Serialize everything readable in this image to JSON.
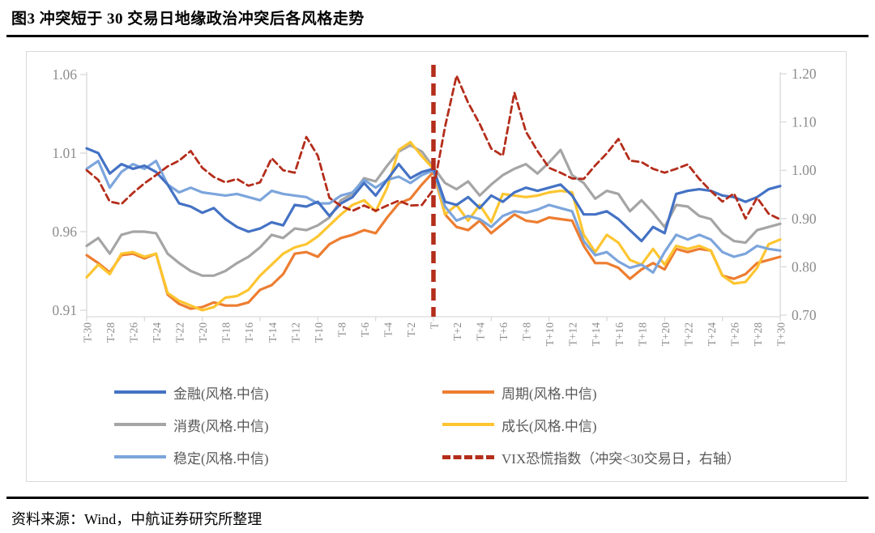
{
  "title": "图3  冲突短于 30 交易日地缘政治冲突后各风格走势",
  "source_note": "资料来源：Wind，中航证券研究所整理",
  "colors": {
    "finance_blue": "#4472C4",
    "cyclical_orange": "#ED7D31",
    "consumer_gray": "#A5A5A5",
    "growth_gold": "#FDC530",
    "stable_lightblue": "#7CA5DC",
    "vix_red": "#B42D1B",
    "event_line_red": "#B42D1B",
    "axis_line": "#D9D9D9",
    "axis_text": "#8C8C8C",
    "legend_text": "#595959"
  },
  "chart_data": {
    "type": "line",
    "title": "图3  冲突短于 30 交易日地缘政治冲突后各风格走势",
    "x_labels_all": [
      "T-30",
      "T-29",
      "T-28",
      "T-27",
      "T-26",
      "T-25",
      "T-24",
      "T-23",
      "T-22",
      "T-21",
      "T-20",
      "T-19",
      "T-18",
      "T-17",
      "T-16",
      "T-15",
      "T-14",
      "T-13",
      "T-12",
      "T-11",
      "T-10",
      "T-9",
      "T-8",
      "T-7",
      "T-6",
      "T-5",
      "T-4",
      "T-3",
      "T-2",
      "T-1",
      "T",
      "T+1",
      "T+2",
      "T+3",
      "T+4",
      "T+5",
      "T+6",
      "T+7",
      "T+8",
      "T+9",
      "T+10",
      "T+11",
      "T+12",
      "T+13",
      "T+14",
      "T+15",
      "T+16",
      "T+17",
      "T+18",
      "T+19",
      "T+20",
      "T+21",
      "T+22",
      "T+23",
      "T+24",
      "T+25",
      "T+26",
      "T+27",
      "T+28",
      "T+29",
      "T+30"
    ],
    "x_label_interval": 2,
    "x_tick_interval": 5,
    "event_line_label": "T",
    "event_line_index": 30,
    "left_axis": {
      "min": 0.91,
      "max": 1.06,
      "ticks": [
        1.06,
        1.01,
        0.96,
        0.91
      ]
    },
    "right_axis": {
      "min": 0.7,
      "max": 1.2,
      "ticks": [
        1.2,
        1.1,
        1.0,
        0.9,
        0.8,
        0.7
      ]
    },
    "grid": false,
    "legend_position": "bottom-two-columns",
    "series": [
      {
        "name": "金融(风格.中信)",
        "axis": "left",
        "color": "#4472C4",
        "style": "solid",
        "values": [
          1.013,
          1.01,
          0.997,
          1.003,
          1.0,
          1.002,
          0.998,
          0.99,
          0.978,
          0.976,
          0.972,
          0.975,
          0.968,
          0.963,
          0.96,
          0.962,
          0.966,
          0.964,
          0.977,
          0.976,
          0.979,
          0.97,
          0.978,
          0.982,
          0.991,
          0.983,
          0.993,
          1.003,
          0.994,
          0.998,
          1.0,
          0.979,
          0.977,
          0.982,
          0.975,
          0.983,
          0.979,
          0.985,
          0.988,
          0.986,
          0.988,
          0.99,
          0.983,
          0.971,
          0.971,
          0.973,
          0.968,
          0.961,
          0.954,
          0.963,
          0.959,
          0.984,
          0.986,
          0.987,
          0.986,
          0.983,
          0.982,
          0.979,
          0.982,
          0.987,
          0.989
        ]
      },
      {
        "name": "周期(风格.中信)",
        "axis": "left",
        "color": "#ED7D31",
        "style": "solid",
        "values": [
          0.945,
          0.94,
          0.934,
          0.945,
          0.946,
          0.943,
          0.946,
          0.92,
          0.914,
          0.911,
          0.912,
          0.915,
          0.913,
          0.913,
          0.915,
          0.923,
          0.926,
          0.933,
          0.946,
          0.947,
          0.944,
          0.952,
          0.956,
          0.958,
          0.961,
          0.959,
          0.969,
          0.978,
          0.981,
          0.99,
          0.998,
          0.971,
          0.963,
          0.961,
          0.967,
          0.959,
          0.965,
          0.971,
          0.967,
          0.966,
          0.969,
          0.968,
          0.967,
          0.951,
          0.94,
          0.94,
          0.937,
          0.93,
          0.936,
          0.94,
          0.936,
          0.949,
          0.947,
          0.949,
          0.948,
          0.932,
          0.93,
          0.933,
          0.94,
          0.942,
          0.944
        ]
      },
      {
        "name": "消费(风格.中信)",
        "axis": "left",
        "color": "#A5A5A5",
        "style": "solid",
        "values": [
          0.951,
          0.956,
          0.946,
          0.958,
          0.96,
          0.96,
          0.959,
          0.946,
          0.94,
          0.935,
          0.932,
          0.932,
          0.935,
          0.94,
          0.944,
          0.95,
          0.958,
          0.956,
          0.962,
          0.961,
          0.964,
          0.969,
          0.98,
          0.984,
          0.994,
          0.992,
          1.002,
          1.011,
          1.015,
          1.011,
          1.001,
          0.991,
          0.987,
          0.992,
          0.983,
          0.99,
          0.996,
          1.0,
          1.003,
          0.997,
          1.004,
          1.012,
          0.996,
          0.991,
          0.981,
          0.986,
          0.984,
          0.973,
          0.98,
          0.972,
          0.963,
          0.977,
          0.976,
          0.97,
          0.968,
          0.959,
          0.954,
          0.953,
          0.961,
          0.963,
          0.965
        ]
      },
      {
        "name": "成长(风格.中信)",
        "axis": "left",
        "color": "#FDC530",
        "style": "solid",
        "values": [
          0.931,
          0.939,
          0.933,
          0.946,
          0.947,
          0.944,
          0.946,
          0.921,
          0.916,
          0.913,
          0.91,
          0.912,
          0.918,
          0.919,
          0.923,
          0.932,
          0.939,
          0.946,
          0.95,
          0.952,
          0.957,
          0.964,
          0.971,
          0.977,
          0.98,
          0.973,
          0.988,
          1.012,
          1.017,
          1.008,
          1.0,
          0.971,
          0.977,
          0.967,
          0.977,
          0.966,
          0.984,
          0.983,
          0.982,
          0.983,
          0.985,
          0.986,
          0.985,
          0.958,
          0.947,
          0.958,
          0.953,
          0.942,
          0.939,
          0.949,
          0.939,
          0.951,
          0.949,
          0.951,
          0.948,
          0.932,
          0.927,
          0.928,
          0.937,
          0.952,
          0.955
        ]
      },
      {
        "name": "稳定(风格.中信)",
        "axis": "left",
        "color": "#7CA5DC",
        "style": "solid",
        "values": [
          1.0,
          1.005,
          0.988,
          0.998,
          1.003,
          1.0,
          1.005,
          0.99,
          0.985,
          0.988,
          0.985,
          0.984,
          0.983,
          0.984,
          0.982,
          0.98,
          0.986,
          0.984,
          0.983,
          0.982,
          0.978,
          0.978,
          0.983,
          0.985,
          0.993,
          0.988,
          0.993,
          0.995,
          0.991,
          0.996,
          0.999,
          0.976,
          0.967,
          0.97,
          0.968,
          0.963,
          0.97,
          0.973,
          0.972,
          0.974,
          0.977,
          0.975,
          0.973,
          0.954,
          0.945,
          0.947,
          0.941,
          0.937,
          0.939,
          0.934,
          0.947,
          0.958,
          0.955,
          0.958,
          0.955,
          0.947,
          0.944,
          0.946,
          0.951,
          0.949,
          0.948
        ]
      },
      {
        "name": "VIX恐慌指数（冲突<30交易日，右轴）",
        "axis": "right",
        "color": "#B42D1B",
        "style": "dashed",
        "values": [
          1.0,
          0.98,
          0.935,
          0.93,
          0.953,
          0.973,
          0.99,
          1.008,
          1.02,
          1.04,
          1.005,
          0.986,
          0.975,
          0.982,
          0.968,
          0.975,
          1.025,
          1.0,
          0.995,
          1.069,
          1.03,
          0.943,
          0.926,
          0.916,
          0.927,
          0.916,
          0.927,
          0.937,
          0.927,
          0.928,
          0.96,
          1.09,
          1.196,
          1.14,
          1.096,
          1.045,
          1.03,
          1.161,
          1.08,
          1.04,
          1.005,
          0.995,
          0.983,
          0.982,
          1.01,
          1.035,
          1.065,
          1.02,
          1.017,
          1.003,
          0.995,
          1.003,
          1.012,
          0.982,
          0.957,
          0.935,
          0.952,
          0.9,
          0.943,
          0.91,
          0.898
        ]
      }
    ]
  }
}
